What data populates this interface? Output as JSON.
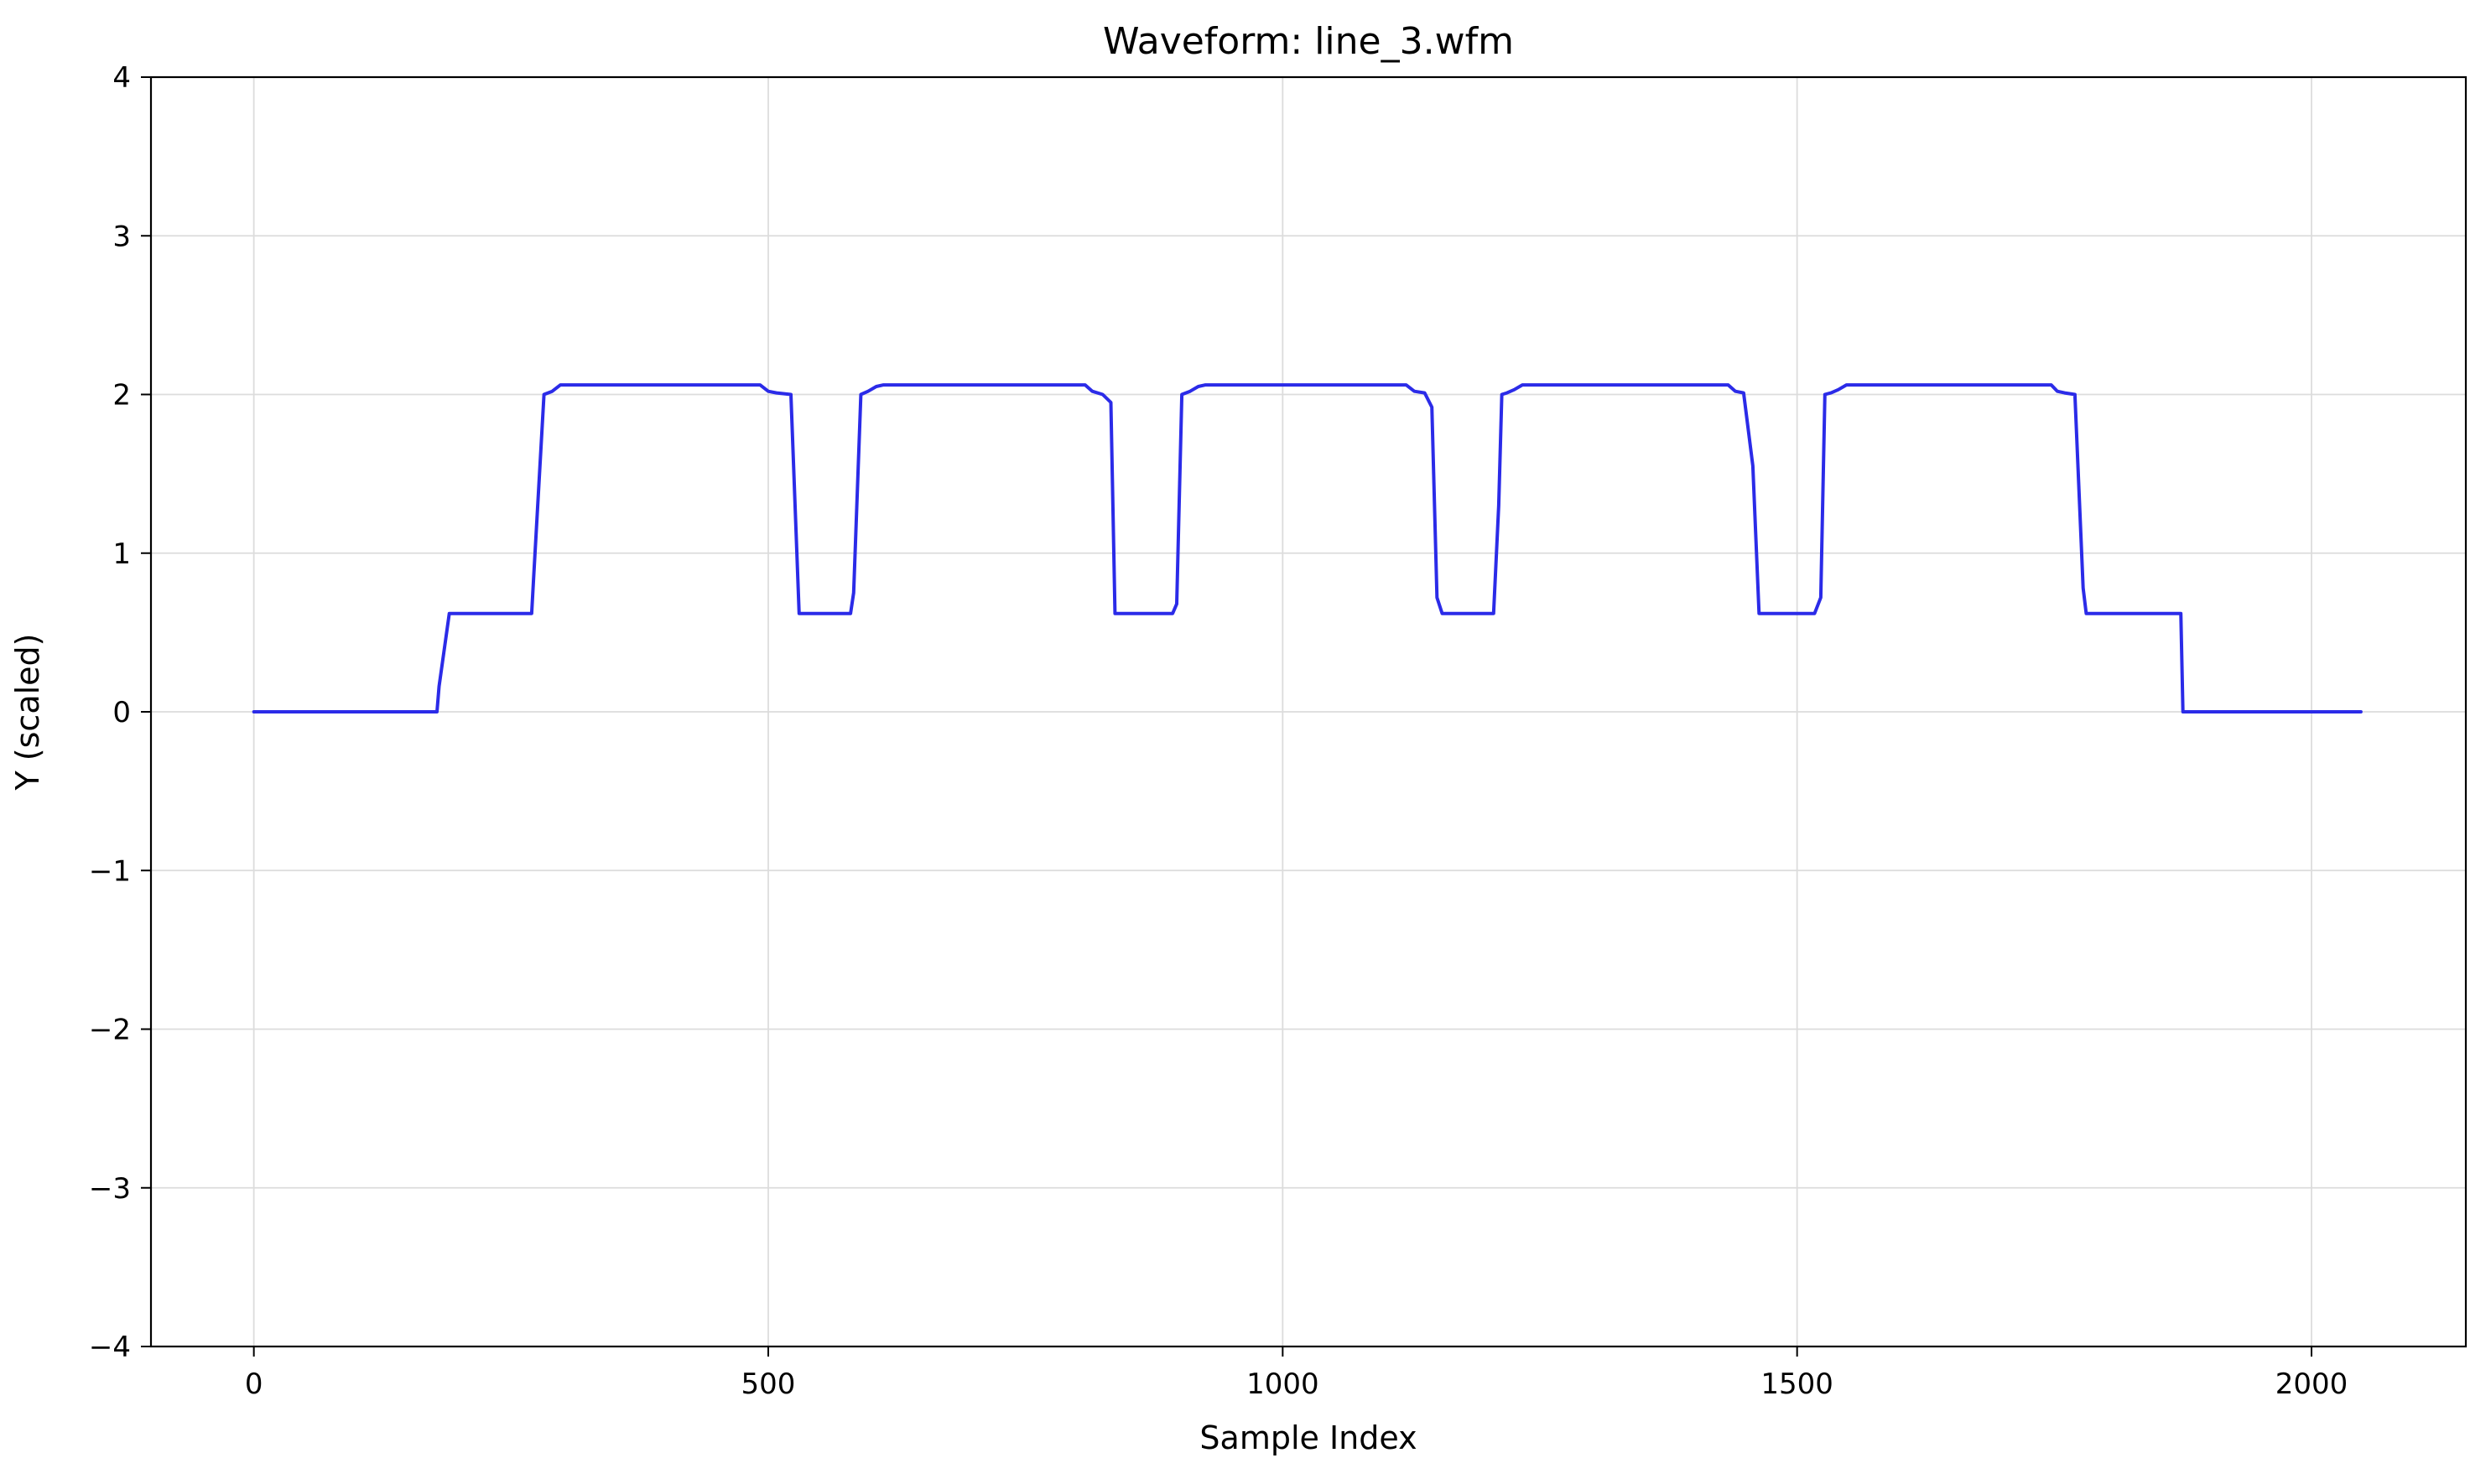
{
  "chart_data": {
    "type": "line",
    "title": "Waveform: line_3.wfm",
    "xlabel": "Sample Index",
    "ylabel": "Y (scaled)",
    "xlim": [
      -100,
      2150
    ],
    "ylim": [
      -4,
      4
    ],
    "xticks": [
      0,
      500,
      1000,
      1500,
      2000
    ],
    "xtick_labels": [
      "0",
      "500",
      "1000",
      "1500",
      "2000"
    ],
    "yticks": [
      -4,
      -3,
      -2,
      -1,
      0,
      1,
      2,
      3,
      4
    ],
    "ytick_labels": [
      "−4",
      "−3",
      "−2",
      "−1",
      "0",
      "1",
      "2",
      "3",
      "4"
    ],
    "grid": true,
    "line_color": "#2b2be8",
    "series": [
      {
        "x": [
          0,
          178,
          180,
          190,
          270,
          272,
          282,
          290,
          298,
          492,
          500,
          508,
          522,
          530,
          580,
          583,
          590,
          597,
          605,
          612,
          808,
          815,
          825,
          833,
          837,
          843,
          893,
          897,
          902,
          910,
          918,
          925,
          1120,
          1128,
          1138,
          1145,
          1150,
          1155,
          1158,
          1205,
          1210,
          1213,
          1218,
          1225,
          1233,
          1243,
          1433,
          1440,
          1448,
          1457,
          1463,
          1467,
          1517,
          1523,
          1527,
          1533,
          1540,
          1548,
          1557,
          1747,
          1753,
          1760,
          1770,
          1778,
          1781,
          1785,
          1873,
          1875,
          2048
        ],
        "y": [
          0,
          0,
          0.16,
          0.62,
          0.62,
          0.85,
          2.0,
          2.02,
          2.06,
          2.06,
          2.02,
          2.01,
          2.0,
          0.62,
          0.62,
          0.75,
          2.0,
          2.02,
          2.05,
          2.06,
          2.06,
          2.02,
          2.0,
          1.95,
          0.62,
          0.62,
          0.62,
          0.68,
          2.0,
          2.02,
          2.05,
          2.06,
          2.06,
          2.02,
          2.01,
          1.92,
          0.72,
          0.62,
          0.62,
          0.62,
          1.3,
          2.0,
          2.01,
          2.03,
          2.06,
          2.06,
          2.06,
          2.02,
          2.01,
          1.55,
          0.62,
          0.62,
          0.62,
          0.72,
          2.0,
          2.01,
          2.03,
          2.06,
          2.06,
          2.06,
          2.02,
          2.01,
          2.0,
          0.78,
          0.62,
          0.62,
          0.62,
          0.0,
          0.0
        ]
      }
    ]
  }
}
